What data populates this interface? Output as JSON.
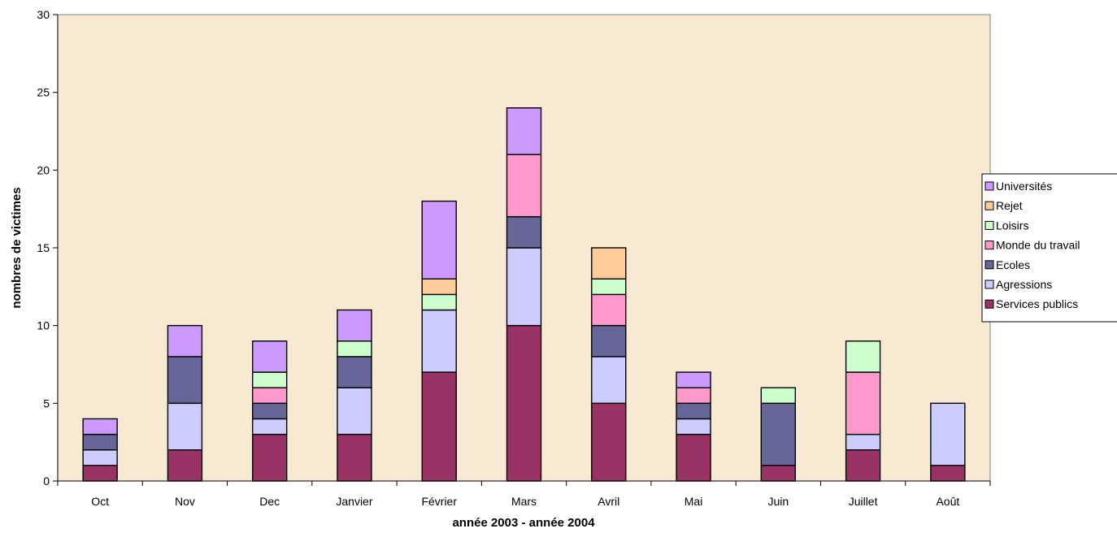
{
  "chart_data": {
    "type": "bar",
    "stacked": true,
    "title": "",
    "xlabel": "année 2003 - année 2004",
    "ylabel": "nombres de victimes",
    "ylim": [
      0,
      30
    ],
    "yticks": [
      0,
      5,
      10,
      15,
      20,
      25,
      30
    ],
    "grid": false,
    "legend_position": "right",
    "categories": [
      "Oct",
      "Nov",
      "Dec",
      "Janvier",
      "Février",
      "Mars",
      "Avril",
      "Mai",
      "Juin",
      "Juillet",
      "Août"
    ],
    "series": [
      {
        "name": "Services publics",
        "color": "#993366",
        "values": [
          1,
          2,
          3,
          3,
          7,
          10,
          5,
          3,
          1,
          2,
          1
        ]
      },
      {
        "name": "Agressions",
        "color": "#CCCCFF",
        "values": [
          1,
          3,
          1,
          3,
          4,
          5,
          3,
          1,
          0,
          1,
          4
        ]
      },
      {
        "name": "Ecoles",
        "color": "#666699",
        "values": [
          1,
          3,
          1,
          2,
          0,
          2,
          2,
          1,
          4,
          0,
          0
        ]
      },
      {
        "name": "Monde du travail",
        "color": "#FF99CC",
        "values": [
          0,
          0,
          1,
          0,
          0,
          4,
          2,
          1,
          0,
          4,
          0
        ]
      },
      {
        "name": "Loisirs",
        "color": "#CCFFCC",
        "values": [
          0,
          0,
          1,
          1,
          1,
          0,
          1,
          0,
          1,
          2,
          0
        ]
      },
      {
        "name": "Rejet",
        "color": "#FFCC99",
        "values": [
          0,
          0,
          0,
          0,
          1,
          0,
          2,
          0,
          0,
          0,
          0
        ]
      },
      {
        "name": "Universités",
        "color": "#CC99FF",
        "values": [
          1,
          2,
          2,
          2,
          5,
          3,
          0,
          1,
          0,
          0,
          0
        ]
      }
    ],
    "legend_order": [
      "Universités",
      "Rejet",
      "Loisirs",
      "Monde du travail",
      "Ecoles",
      "Agressions",
      "Services publics"
    ]
  },
  "colors": {
    "plot_background": "#F8EAD2",
    "axis": "#000000",
    "bar_outline": "#000000"
  }
}
